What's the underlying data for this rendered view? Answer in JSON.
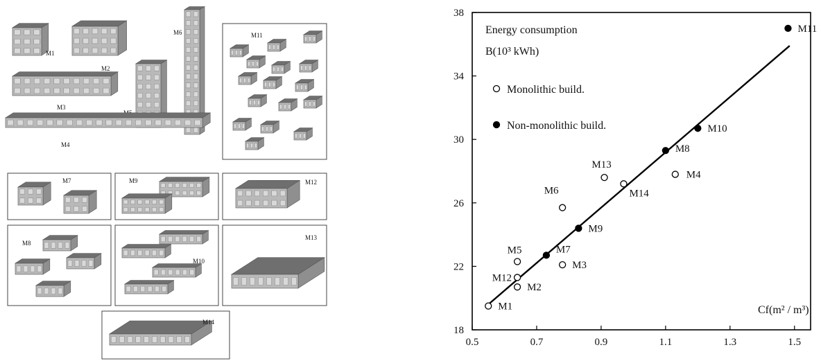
{
  "buildings": {
    "labels": [
      "M1",
      "M2",
      "M3",
      "M4",
      "M5",
      "M6",
      "M7",
      "M8",
      "M9",
      "M10",
      "M11",
      "M12",
      "M13",
      "M14"
    ]
  },
  "chart_data": {
    "type": "scatter",
    "title_line1": "Energy consumption",
    "title_line2": "B(10³ kWh)",
    "xlabel": "Cf(m² / m³)",
    "ylabel": "",
    "xlim": [
      0.5,
      1.55
    ],
    "ylim": [
      18,
      38
    ],
    "xticks": [
      "0.5",
      "0.7",
      "0.9",
      "1.1",
      "1.3",
      "1.5"
    ],
    "yticks": [
      "18",
      "22",
      "26",
      "30",
      "34",
      "38"
    ],
    "legend": [
      {
        "marker": "open",
        "label": "Monolithic build."
      },
      {
        "marker": "filled",
        "label": "Non-monolithic build."
      }
    ],
    "fit_line": {
      "x": [
        0.55,
        1.485
      ],
      "y": [
        19.6,
        35.9
      ]
    },
    "points": [
      {
        "label": "M1",
        "x": 0.55,
        "y": 19.5,
        "filled": false
      },
      {
        "label": "M2",
        "x": 0.64,
        "y": 20.7,
        "filled": false
      },
      {
        "label": "M3",
        "x": 0.78,
        "y": 22.1,
        "filled": false
      },
      {
        "label": "M4",
        "x": 1.13,
        "y": 27.8,
        "filled": false
      },
      {
        "label": "M5",
        "x": 0.64,
        "y": 22.3,
        "filled": false
      },
      {
        "label": "M6",
        "x": 0.78,
        "y": 25.7,
        "filled": false
      },
      {
        "label": "M7",
        "x": 0.73,
        "y": 22.7,
        "filled": true
      },
      {
        "label": "M8",
        "x": 1.1,
        "y": 29.3,
        "filled": true
      },
      {
        "label": "M9",
        "x": 0.83,
        "y": 24.4,
        "filled": true
      },
      {
        "label": "M10",
        "x": 1.2,
        "y": 30.7,
        "filled": true
      },
      {
        "label": "M11",
        "x": 1.48,
        "y": 37.0,
        "filled": true
      },
      {
        "label": "M12",
        "x": 0.64,
        "y": 21.3,
        "filled": false
      },
      {
        "label": "M13",
        "x": 0.91,
        "y": 27.6,
        "filled": false
      },
      {
        "label": "M14",
        "x": 0.97,
        "y": 27.2,
        "filled": false
      }
    ]
  }
}
